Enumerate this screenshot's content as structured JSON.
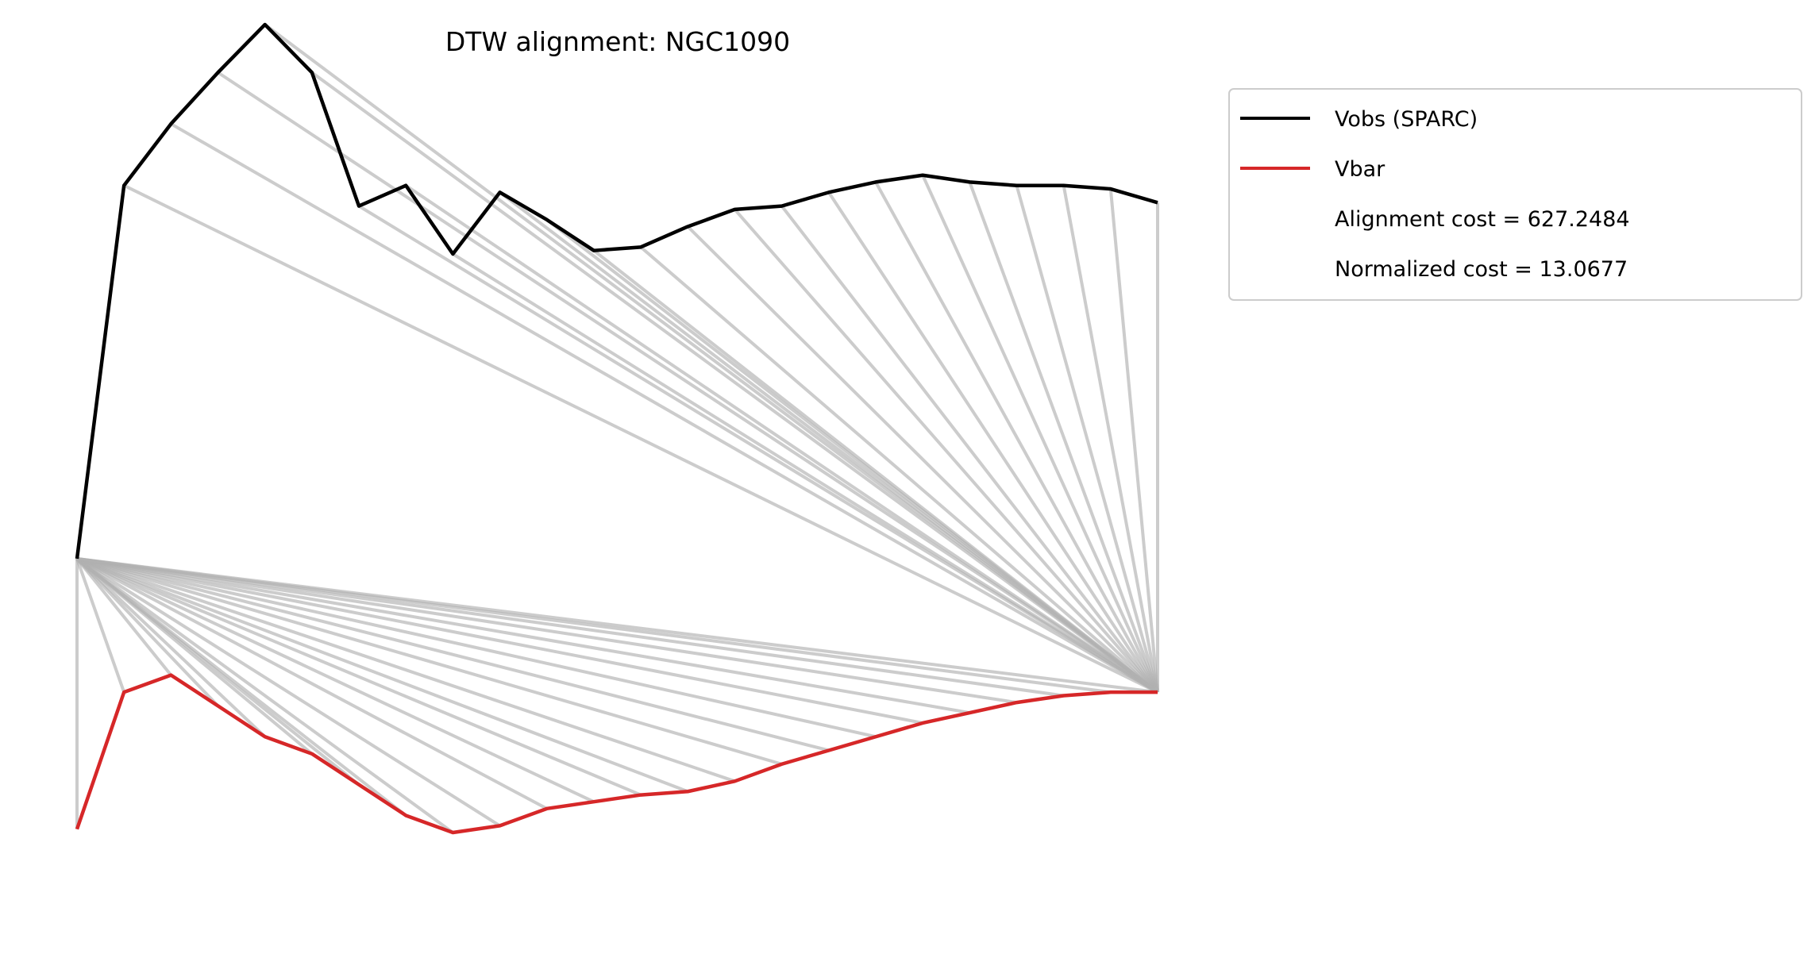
{
  "chart_data": {
    "type": "line",
    "title": "DTW alignment: NGC1090",
    "axes_visible": false,
    "grid": false,
    "legend_placement": "upper-right, outside plot",
    "x": [
      0,
      1,
      2,
      3,
      4,
      5,
      6,
      7,
      8,
      9,
      10,
      11,
      12,
      13,
      14,
      15,
      16,
      17,
      18,
      19,
      20,
      21,
      22,
      23
    ],
    "ylim": [
      -15,
      240
    ],
    "series": [
      {
        "name": "Vobs (SPARC)",
        "color": "#000000",
        "values": [
          100,
          209,
          227,
          242,
          256,
          242,
          203,
          209,
          189,
          207,
          199,
          190,
          191,
          197,
          202,
          203,
          207,
          210,
          212,
          210,
          209,
          209,
          208,
          204
        ]
      },
      {
        "name": "Vbar",
        "color": "#d62728",
        "values": [
          21,
          61,
          66,
          57,
          48,
          43,
          34,
          25,
          20,
          22,
          27,
          29,
          31,
          32,
          35,
          40,
          44,
          48,
          52,
          55,
          58,
          60,
          61,
          61
        ]
      }
    ],
    "alignment_path": [
      [
        0,
        0
      ],
      [
        0,
        1
      ],
      [
        0,
        2
      ],
      [
        0,
        3
      ],
      [
        0,
        4
      ],
      [
        0,
        5
      ],
      [
        0,
        6
      ],
      [
        0,
        7
      ],
      [
        0,
        8
      ],
      [
        0,
        9
      ],
      [
        0,
        10
      ],
      [
        0,
        11
      ],
      [
        0,
        12
      ],
      [
        0,
        13
      ],
      [
        0,
        14
      ],
      [
        0,
        15
      ],
      [
        0,
        16
      ],
      [
        0,
        17
      ],
      [
        0,
        18
      ],
      [
        0,
        19
      ],
      [
        0,
        20
      ],
      [
        0,
        21
      ],
      [
        0,
        22
      ],
      [
        0,
        23
      ],
      [
        1,
        23
      ],
      [
        2,
        23
      ],
      [
        3,
        23
      ],
      [
        4,
        23
      ],
      [
        5,
        23
      ],
      [
        6,
        23
      ],
      [
        7,
        23
      ],
      [
        8,
        23
      ],
      [
        9,
        23
      ],
      [
        10,
        23
      ],
      [
        11,
        23
      ],
      [
        12,
        23
      ],
      [
        13,
        23
      ],
      [
        14,
        23
      ],
      [
        15,
        23
      ],
      [
        16,
        23
      ],
      [
        17,
        23
      ],
      [
        18,
        23
      ],
      [
        19,
        23
      ],
      [
        20,
        23
      ],
      [
        21,
        23
      ],
      [
        22,
        23
      ],
      [
        23,
        23
      ]
    ],
    "alignment_line_color": "#b0b0b0",
    "legend": {
      "entries": [
        "Vobs (SPARC)",
        "Vbar"
      ],
      "cost_label": "Alignment cost = 627.2484",
      "normalized_label": "Normalized cost = 13.0677"
    }
  }
}
